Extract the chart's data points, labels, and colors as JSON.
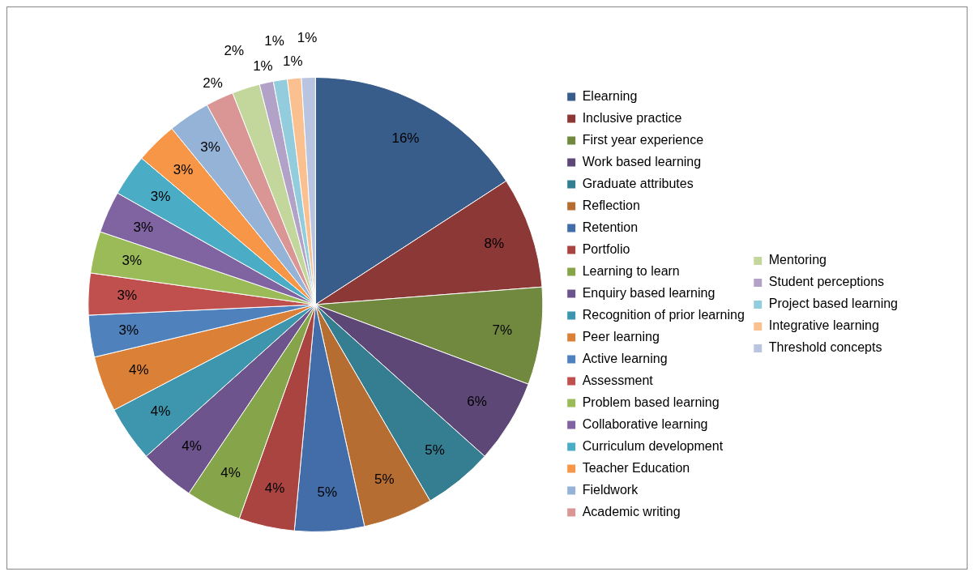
{
  "chart_data": {
    "type": "pie",
    "categories": [
      "Elearning",
      "Inclusive practice",
      "First year experience",
      "Work based learning",
      "Graduate attributes",
      "Reflection",
      "Retention",
      "Portfolio",
      "Learning to learn",
      "Enquiry based learning",
      "Recognition of prior learning",
      "Peer learning",
      "Active learning",
      "Assessment",
      "Problem based learning",
      "Collaborative learning",
      "Curriculum development",
      "Teacher Education",
      "Fieldwork",
      "Academic writing",
      "Mentoring",
      "Student perceptions",
      "Project based learning",
      "Integrative learning",
      "Threshold concepts"
    ],
    "values": [
      16,
      8,
      7,
      6,
      5,
      5,
      5,
      4,
      4,
      4,
      4,
      4,
      3,
      3,
      3,
      3,
      3,
      3,
      3,
      2,
      2,
      1,
      1,
      1,
      1
    ],
    "colors": [
      "#385d8a",
      "#8c3836",
      "#71893f",
      "#5c4776",
      "#357d91",
      "#b66d31",
      "#426da9",
      "#a94441",
      "#86a44a",
      "#6e548d",
      "#3d96ae",
      "#da8137",
      "#4f81bd",
      "#c0504d",
      "#9bbb59",
      "#8064a2",
      "#4bacc6",
      "#f79646",
      "#95b3d7",
      "#d99694",
      "#c3d69b",
      "#b3a2c7",
      "#93cddd",
      "#fac090",
      "#b9c5e0"
    ],
    "value_labels": [
      "16%",
      "8%",
      "7%",
      "6%",
      "5%",
      "5%",
      "5%",
      "4%",
      "4%",
      "4%",
      "4%",
      "4%",
      "3%",
      "3%",
      "3%",
      "3%",
      "3%",
      "3%",
      "3%",
      "2%",
      "2%",
      "1%",
      "1%",
      "1%",
      "1%"
    ],
    "legend": "right"
  }
}
